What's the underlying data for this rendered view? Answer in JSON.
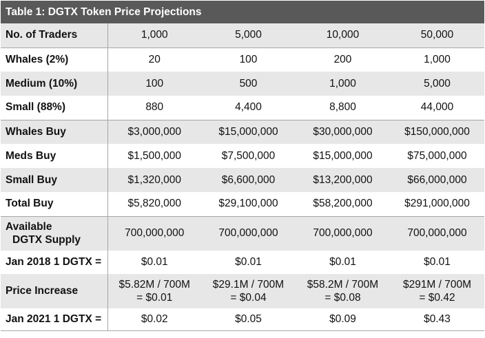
{
  "title": "Table 1: DGTX Token Price Projections",
  "rows": [
    {
      "label": "No. of Traders",
      "values": [
        "1,000",
        "5,000",
        "10,000",
        "50,000"
      ]
    },
    {
      "label": "Whales (2%)",
      "values": [
        "20",
        "100",
        "200",
        "1,000"
      ]
    },
    {
      "label": "Medium (10%)",
      "values": [
        "100",
        "500",
        "1,000",
        "5,000"
      ]
    },
    {
      "label": "Small (88%)",
      "values": [
        "880",
        "4,400",
        "8,800",
        "44,000"
      ]
    },
    {
      "label": "Whales Buy",
      "values": [
        "$3,000,000",
        "$15,000,000",
        "$30,000,000",
        "$150,000,000"
      ]
    },
    {
      "label": "Meds Buy",
      "values": [
        "$1,500,000",
        "$7,500,000",
        "$15,000,000",
        "$75,000,000"
      ]
    },
    {
      "label": "Small Buy",
      "values": [
        "$1,320,000",
        "$6,600,000",
        "$13,200,000",
        "$66,000,000"
      ]
    },
    {
      "label": "Total Buy",
      "values": [
        "$5,820,000",
        "$29,100,000",
        "$58,200,000",
        "$291,000,000"
      ]
    },
    {
      "label_line1": "Available",
      "label_line2": "DGTX Supply",
      "values": [
        "700,000,000",
        "700,000,000",
        "700,000,000",
        "700,000,000"
      ]
    },
    {
      "label": "Jan 2018 1 DGTX =",
      "values": [
        "$0.01",
        "$0.01",
        "$0.01",
        "$0.01"
      ]
    },
    {
      "label": "Price Increase",
      "values_line1": [
        "$5.82M / 700M",
        "$29.1M / 700M",
        "$58.2M / 700M",
        "$291M / 700M"
      ],
      "values_line2": [
        "=  $0.01",
        "= $0.04",
        "= $0.08",
        "= $0.42"
      ]
    },
    {
      "label": "Jan 2021 1 DGTX =",
      "values": [
        "$0.02",
        "$0.05",
        "$0.09",
        "$0.43"
      ]
    }
  ]
}
